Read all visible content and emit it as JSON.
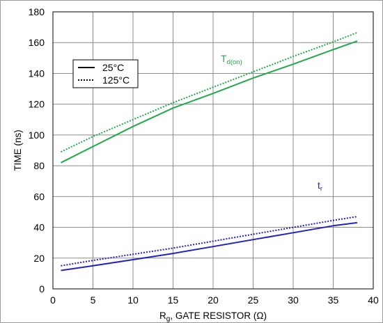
{
  "chart_data": {
    "type": "line",
    "xlabel": {
      "main": "R",
      "sub": "g",
      "rest": ", GATE RESISTOR (Ω)"
    },
    "ylabel": "TIME (ns)",
    "xlim": [
      0,
      40
    ],
    "ylim": [
      0,
      180
    ],
    "xticks": [
      0,
      5,
      10,
      15,
      20,
      25,
      30,
      35,
      40
    ],
    "yticks": [
      0,
      20,
      40,
      60,
      80,
      100,
      120,
      140,
      160,
      180
    ],
    "grid": true,
    "legend": {
      "placement": "top-left",
      "entries": [
        {
          "label": "25°C",
          "style": "solid"
        },
        {
          "label": "125°C",
          "style": "dotted"
        }
      ]
    },
    "annotations": [
      {
        "main": "T",
        "sub": "d(on)",
        "color": "#22a84a"
      },
      {
        "main": "t",
        "sub": "r",
        "color": "#2020c8"
      }
    ],
    "series": [
      {
        "group": "T_d(on)",
        "temperature": "25°C",
        "style": "solid",
        "color": "#22a84a",
        "x": [
          1,
          5,
          10,
          15,
          20,
          25,
          30,
          35,
          38
        ],
        "y": [
          82,
          92.5,
          105.5,
          117.5,
          127,
          137,
          146,
          155.5,
          161
        ]
      },
      {
        "group": "T_d(on)",
        "temperature": "125°C",
        "style": "dotted",
        "color": "#22a84a",
        "x": [
          1,
          5,
          10,
          15,
          20,
          25,
          30,
          35,
          38
        ],
        "y": [
          89,
          99,
          110,
          121,
          131,
          141,
          151,
          160.5,
          166.5
        ]
      },
      {
        "group": "t_r",
        "temperature": "25°C",
        "style": "solid",
        "color": "#2020c8",
        "x": [
          1,
          5,
          10,
          15,
          20,
          25,
          30,
          35,
          38
        ],
        "y": [
          12,
          15,
          19,
          23,
          27.5,
          32,
          36.5,
          41,
          43
        ]
      },
      {
        "group": "t_r",
        "temperature": "125°C",
        "style": "dotted",
        "color": "#2020c8",
        "x": [
          1,
          5,
          10,
          15,
          20,
          25,
          30,
          35,
          38
        ],
        "y": [
          15,
          18.5,
          22.5,
          26.5,
          31,
          35.5,
          40,
          44.5,
          47
        ]
      }
    ]
  }
}
